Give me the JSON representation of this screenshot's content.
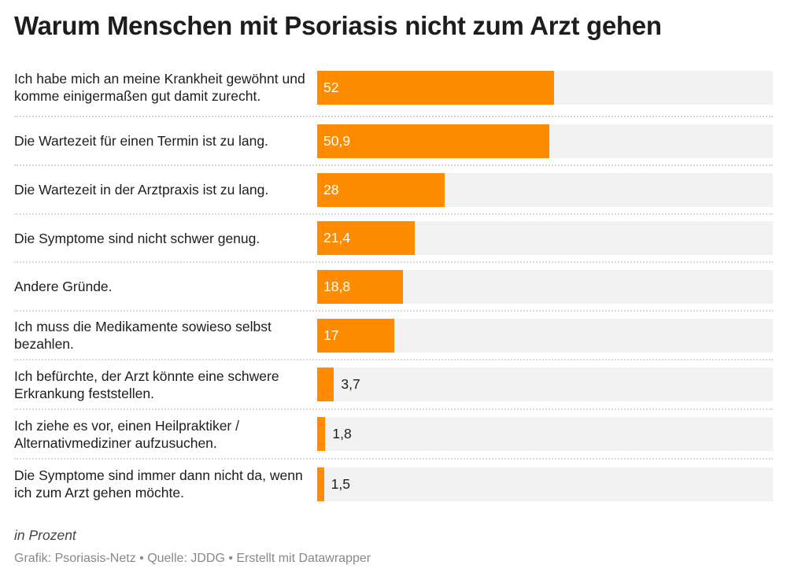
{
  "chart_data": {
    "type": "bar",
    "orientation": "horizontal",
    "title": "Warum Menschen mit Psoriasis nicht zum Arzt gehen",
    "categories": [
      "Ich habe mich an meine Krankheit gewöhnt und komme einigermaßen gut damit zurecht.",
      "Die Wartezeit für einen Termin ist zu lang.",
      "Die Wartezeit in der Arztpraxis ist zu lang.",
      "Die Symptome sind nicht schwer genug.",
      "Andere Gründe.",
      "Ich muss die Medikamente sowieso selbst bezahlen.",
      "Ich befürchte, der Arzt könnte eine schwere Erkrankung feststellen.",
      "Ich ziehe es vor, einen Heilpraktiker / Alternativmediziner aufzusuchen.",
      "Die Symptome sind immer dann nicht da, wenn ich zum Arzt gehen möchte."
    ],
    "values": [
      52,
      50.9,
      28,
      21.4,
      18.8,
      17,
      3.7,
      1.8,
      1.5
    ],
    "value_labels": [
      "52",
      "50,9",
      "28",
      "21,4",
      "18,8",
      "17",
      "3,7",
      "1,8",
      "1,5"
    ],
    "xlim": [
      0,
      100
    ],
    "unit_note": "in Prozent",
    "bar_color": "#ff8c00",
    "track_color": "#f2f2f2"
  },
  "footer": {
    "source": "Grafik: Psoriasis-Netz • Quelle: JDDG • Erstellt mit Datawrapper"
  }
}
